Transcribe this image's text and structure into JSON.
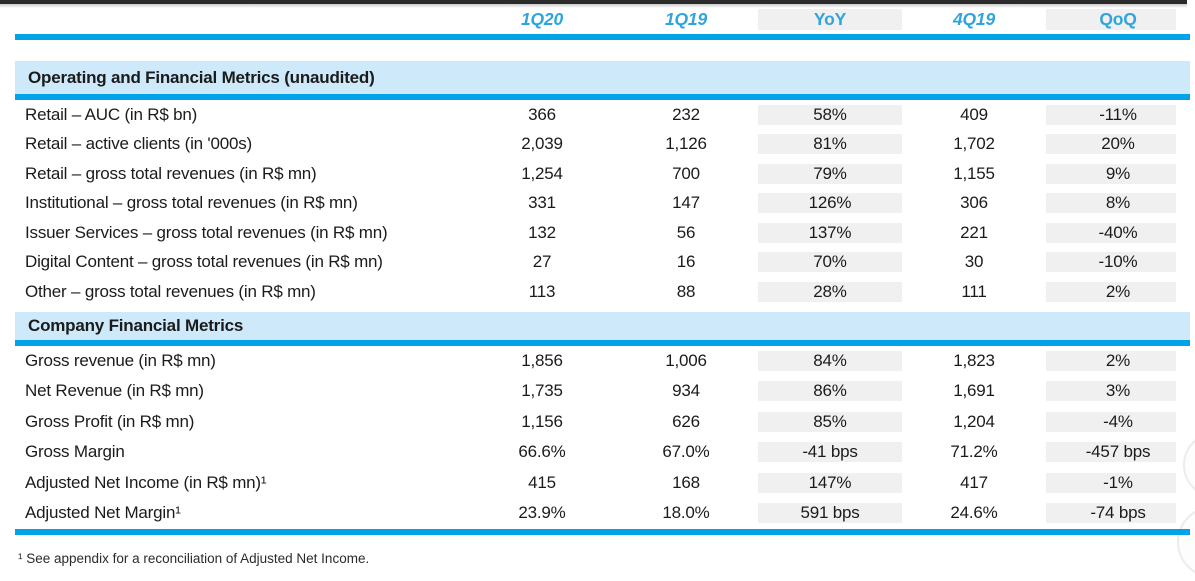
{
  "colors": {
    "accent": "#00a2e8",
    "accent_text": "#2fa5de",
    "band_bg": "#cde9fa",
    "shade_bg": "#f0f0f0",
    "text": "#1b1b1b",
    "topbar": "#2b2b2b"
  },
  "table": {
    "columns": [
      {
        "label": "1Q20",
        "type": "quarter",
        "shaded": false
      },
      {
        "label": "1Q19",
        "type": "quarter",
        "shaded": false
      },
      {
        "label": "YoY",
        "type": "delta",
        "shaded": true
      },
      {
        "label": "4Q19",
        "type": "quarter",
        "shaded": false
      },
      {
        "label": "QoQ",
        "type": "delta",
        "shaded": true
      }
    ],
    "sections": [
      {
        "title": "Operating and Financial Metrics (unaudited)",
        "rows": [
          {
            "label": "Retail – AUC (in R$ bn)",
            "values": [
              "366",
              "232",
              "58%",
              "409",
              "-11%"
            ]
          },
          {
            "label": "Retail – active clients (in '000s)",
            "values": [
              "2,039",
              "1,126",
              "81%",
              "1,702",
              "20%"
            ]
          },
          {
            "label": "Retail – gross total revenues (in R$ mn)",
            "values": [
              "1,254",
              "700",
              "79%",
              "1,155",
              "9%"
            ]
          },
          {
            "label": "Institutional – gross total revenues (in R$ mn)",
            "values": [
              "331",
              "147",
              "126%",
              "306",
              "8%"
            ]
          },
          {
            "label": "Issuer Services – gross total revenues (in R$ mn)",
            "values": [
              "132",
              "56",
              "137%",
              "221",
              "-40%"
            ]
          },
          {
            "label": "Digital Content – gross total revenues (in R$ mn)",
            "values": [
              "27",
              "16",
              "70%",
              "30",
              "-10%"
            ]
          },
          {
            "label": "Other – gross total revenues (in R$ mn)",
            "values": [
              "113",
              "88",
              "28%",
              "111",
              "2%"
            ]
          }
        ]
      },
      {
        "title": "Company Financial Metrics",
        "rows": [
          {
            "label": "Gross revenue (in R$ mn)",
            "values": [
              "1,856",
              "1,006",
              "84%",
              "1,823",
              "2%"
            ]
          },
          {
            "label": "Net Revenue (in R$ mn)",
            "values": [
              "1,735",
              "934",
              "86%",
              "1,691",
              "3%"
            ]
          },
          {
            "label": "Gross Profit (in R$ mn)",
            "values": [
              "1,156",
              "626",
              "85%",
              "1,204",
              "-4%"
            ]
          },
          {
            "label": "Gross Margin",
            "values": [
              "66.6%",
              "67.0%",
              "-41 bps",
              "71.2%",
              "-457 bps"
            ]
          },
          {
            "label": "Adjusted Net Income (in R$ mn)¹",
            "values": [
              "415",
              "168",
              "147%",
              "417",
              "-1%"
            ]
          },
          {
            "label": "Adjusted Net Margin¹",
            "values": [
              "23.9%",
              "18.0%",
              "591 bps",
              "24.6%",
              "-74 bps"
            ]
          }
        ]
      }
    ]
  },
  "footnote": "¹ See appendix for a reconciliation of Adjusted Net Income."
}
